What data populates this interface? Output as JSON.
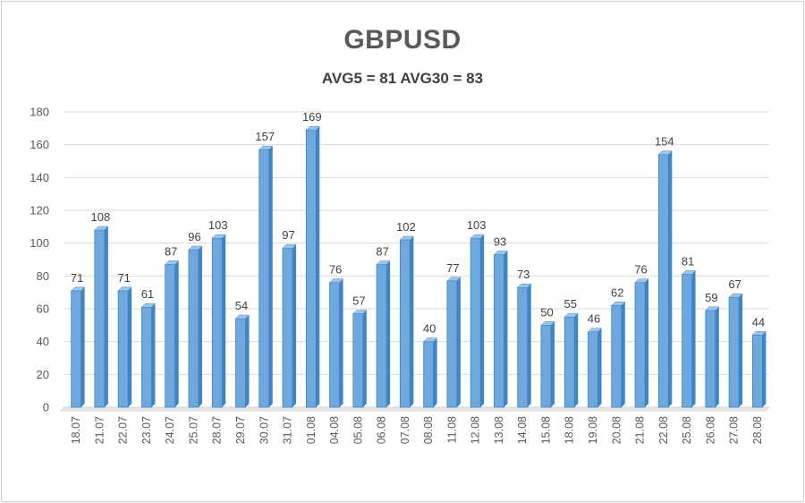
{
  "chart_data": {
    "type": "bar",
    "title": "GBPUSD",
    "subtitle": "AVG5 = 81 AVG30 = 83",
    "categories": [
      "18.07",
      "21.07",
      "22.07",
      "23.07",
      "24.07",
      "25.07",
      "28.07",
      "29.07",
      "30.07",
      "31.07",
      "01.08",
      "04.08",
      "05.08",
      "06.08",
      "07.08",
      "08.08",
      "11.08",
      "12.08",
      "13.08",
      "14.08",
      "15.08",
      "18.08",
      "19.08",
      "20.08",
      "21.08",
      "22.08",
      "25.08",
      "26.08",
      "27.08",
      "28.08"
    ],
    "values": [
      71,
      108,
      71,
      61,
      87,
      96,
      103,
      54,
      157,
      97,
      169,
      76,
      57,
      87,
      102,
      40,
      77,
      103,
      93,
      73,
      50,
      55,
      46,
      62,
      76,
      154,
      81,
      59,
      67,
      44
    ],
    "ylim": [
      0,
      180
    ],
    "yticks": [
      0,
      20,
      40,
      60,
      80,
      100,
      120,
      140,
      160,
      180
    ],
    "grid": true,
    "bar_color": "#6fa8dc",
    "bar_dark": "#3d85c6",
    "grid_color": "#d9d9d9"
  }
}
